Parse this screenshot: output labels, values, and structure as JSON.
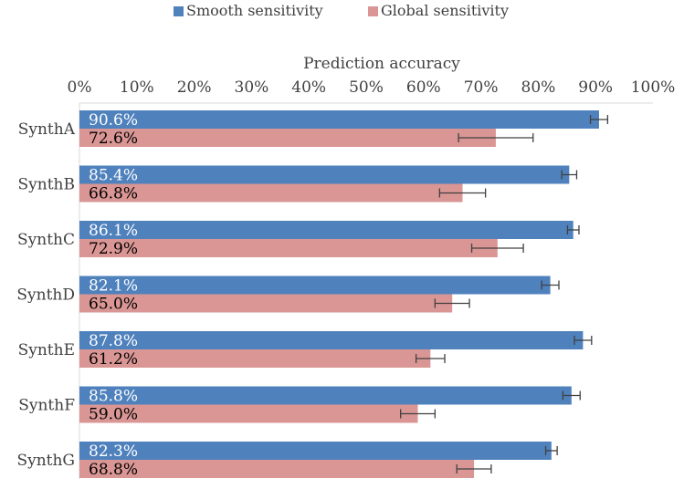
{
  "chart_data": {
    "type": "bar",
    "orientation": "horizontal",
    "title": "",
    "xlabel": "Prediction accuracy",
    "ylabel": "",
    "xlim": [
      0,
      100
    ],
    "x_ticks": [
      "0%",
      "10%",
      "20%",
      "30%",
      "40%",
      "50%",
      "60%",
      "70%",
      "80%",
      "90%",
      "100%"
    ],
    "legend_position": "top-center",
    "grid": false,
    "categories": [
      "SynthA",
      "SynthB",
      "SynthC",
      "SynthD",
      "SynthE",
      "SynthF",
      "SynthG"
    ],
    "series": [
      {
        "name": "Smooth sensitivity",
        "color": "#4f81bd",
        "label_color": "#ffffff",
        "values": [
          90.6,
          85.4,
          86.1,
          82.1,
          87.8,
          85.8,
          82.3
        ],
        "labels": [
          "90.6%",
          "85.4%",
          "86.1%",
          "82.1%",
          "87.8%",
          "85.8%",
          "82.3%"
        ],
        "error": [
          1.5,
          1.3,
          1.0,
          1.5,
          1.5,
          1.5,
          1.0
        ]
      },
      {
        "name": "Global sensitivity",
        "color": "#d99694",
        "label_color": "#000000",
        "values": [
          72.6,
          66.8,
          72.9,
          65.0,
          61.2,
          59.0,
          68.8
        ],
        "labels": [
          "72.6%",
          "66.8%",
          "72.9%",
          "65.0%",
          "61.2%",
          "59.0%",
          "68.8%"
        ],
        "error": [
          6.5,
          4.0,
          4.5,
          3.0,
          2.5,
          3.0,
          3.0
        ]
      }
    ]
  }
}
